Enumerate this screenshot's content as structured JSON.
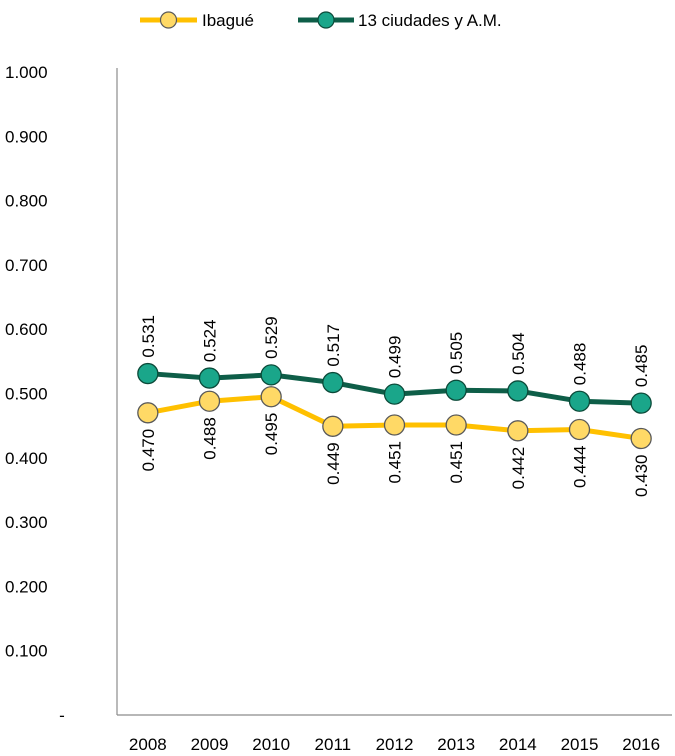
{
  "chart_data": {
    "type": "line",
    "title": "",
    "xlabel": "",
    "ylabel": "",
    "categories": [
      "2008",
      "2009",
      "2010",
      "2011",
      "2012",
      "2013",
      "2014",
      "2015",
      "2016"
    ],
    "ylim": [
      0,
      1
    ],
    "y_ticks": [
      0,
      0.1,
      0.2,
      0.3,
      0.4,
      0.5,
      0.6,
      0.7,
      0.8,
      0.9,
      1.0
    ],
    "y_tick_labels": [
      "-",
      "0.100",
      "0.200",
      "0.300",
      "0.400",
      "0.500",
      "0.600",
      "0.700",
      "0.800",
      "0.900",
      "1.000"
    ],
    "grid": false,
    "legend_position": "top",
    "series": [
      {
        "name": "Ibagué",
        "color": "#FFC000",
        "marker_fill": "#FFD966",
        "values": [
          0.47,
          0.488,
          0.495,
          0.449,
          0.451,
          0.451,
          0.442,
          0.444,
          0.43
        ],
        "labels": [
          "0.470",
          "0.488",
          "0.495",
          "0.449",
          "0.451",
          "0.451",
          "0.442",
          "0.444",
          "0.430"
        ],
        "label_position": "below"
      },
      {
        "name": "13 ciudades y A.M.",
        "color": "#0E5E48",
        "marker_fill": "#1AA68A",
        "values": [
          0.531,
          0.524,
          0.529,
          0.517,
          0.499,
          0.505,
          0.504,
          0.488,
          0.485
        ],
        "labels": [
          "0.531",
          "0.524",
          "0.529",
          "0.517",
          "0.499",
          "0.505",
          "0.504",
          "0.488",
          "0.485"
        ],
        "label_position": "above"
      }
    ]
  }
}
